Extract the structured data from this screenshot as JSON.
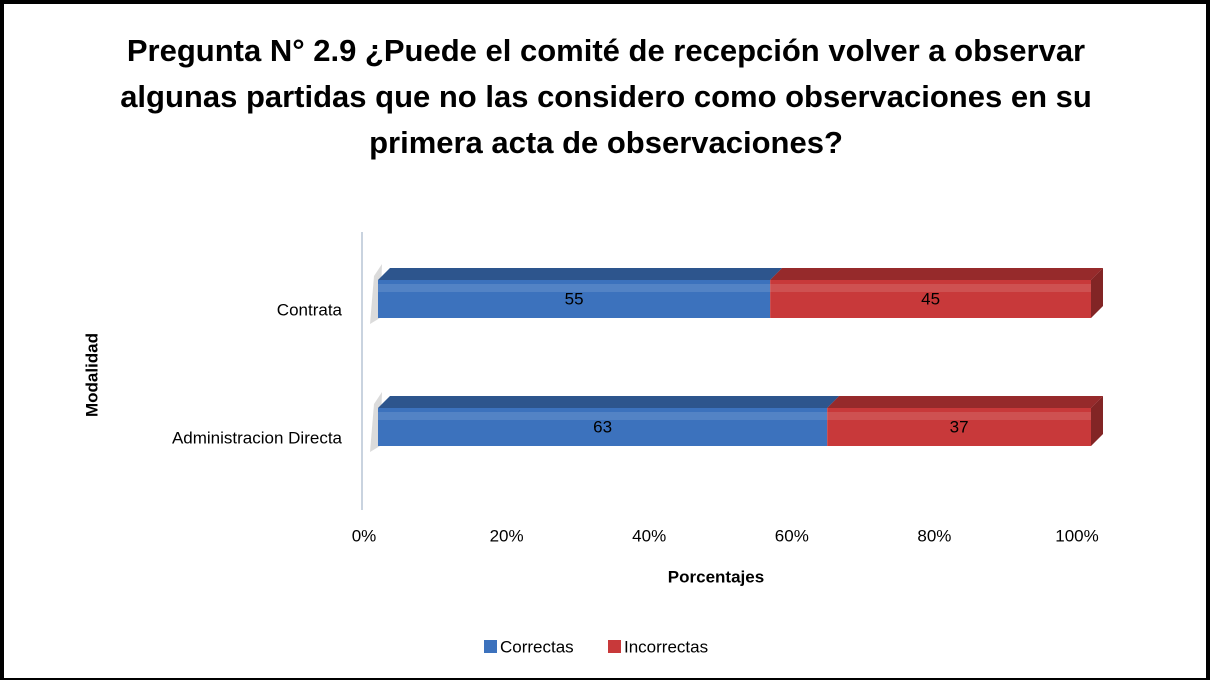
{
  "chart_data": {
    "type": "stacked_bar_horizontal",
    "title": "Pregunta N° 2.9 ¿Puede el comité de recepción volver a observar algunas partidas que no las considero como observaciones en su primera acta de observaciones?",
    "x_label": "Porcentajes",
    "y_label": "Modalidad",
    "categories": [
      "Contrata",
      "Administracion Directa"
    ],
    "series": [
      {
        "name": "Correctas",
        "color": "#3c72bd",
        "values": [
          55,
          63
        ]
      },
      {
        "name": "Incorrectas",
        "color": "#c8393a",
        "values": [
          45,
          37
        ]
      }
    ],
    "xlim": [
      0,
      100
    ],
    "xticks": [
      {
        "value": 0,
        "label": "0%"
      },
      {
        "value": 20,
        "label": "20%"
      },
      {
        "value": 40,
        "label": "40%"
      },
      {
        "value": 60,
        "label": "60%"
      },
      {
        "value": 80,
        "label": "80%"
      },
      {
        "value": 100,
        "label": "100%"
      }
    ],
    "legend": "bottom"
  }
}
